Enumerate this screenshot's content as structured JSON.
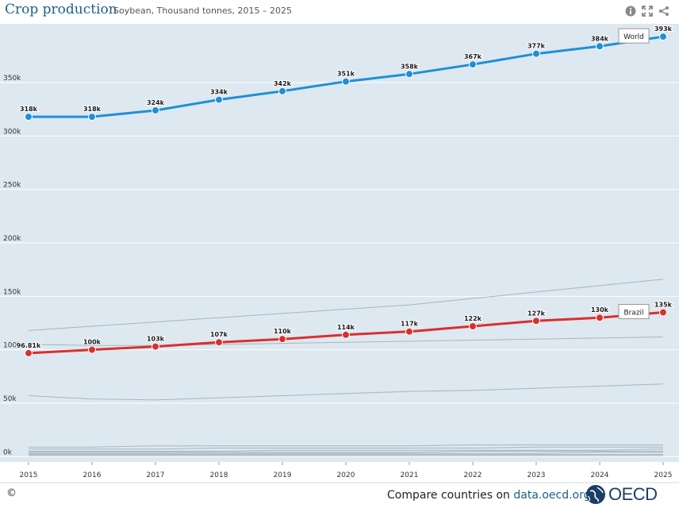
{
  "header": {
    "title": "Crop production",
    "subtitle": "Soybean, Thousand tonnes, 2015 – 2025"
  },
  "icons": [
    "info-icon",
    "fullscreen-icon",
    "share-icon"
  ],
  "footer": {
    "copyright": "©",
    "compare_text": "Compare countries on ",
    "compare_domain": "data.oecd.org",
    "logo_text": "OECD"
  },
  "colors": {
    "plot_bg": "#dde8f0",
    "world": "#1f8fd6",
    "brazil": "#d9302f",
    "gray_line": "#a7b5c0",
    "title": "#1a5f8a"
  },
  "chart_data": {
    "type": "line",
    "x": [
      2015,
      2016,
      2017,
      2018,
      2019,
      2020,
      2021,
      2022,
      2023,
      2024,
      2025
    ],
    "xlabels": [
      "2015",
      "2016",
      "2017",
      "2018",
      "2019",
      "2020",
      "2021",
      "2022",
      "2023",
      "2024",
      "2025"
    ],
    "yticks": [
      0,
      50,
      100,
      150,
      200,
      250,
      300,
      350
    ],
    "ytick_labels": [
      "0k",
      "50k",
      "100k",
      "150k",
      "200k",
      "250k",
      "300k",
      "350k"
    ],
    "ylim": [
      -5,
      405
    ],
    "grid": true,
    "series": [
      {
        "name": "World",
        "highlight": true,
        "color": "#1f8fd6",
        "values": [
          318,
          318,
          324,
          334,
          342,
          351,
          358,
          367,
          377,
          384,
          393
        ],
        "labels": [
          "318k",
          "318k",
          "324k",
          "334k",
          "342k",
          "351k",
          "358k",
          "367k",
          "377k",
          "384k",
          "393k"
        ]
      },
      {
        "name": "Brazil",
        "highlight": true,
        "color": "#d9302f",
        "values": [
          96.81,
          100,
          103,
          107,
          110,
          114,
          117,
          122,
          127,
          130,
          135
        ],
        "labels": [
          "96.81k",
          "100k",
          "103k",
          "107k",
          "110k",
          "114k",
          "117k",
          "122k",
          "127k",
          "130k",
          "135k"
        ]
      }
    ],
    "background_series": [
      [
        118,
        122,
        126,
        130,
        134,
        138,
        142,
        148,
        154,
        160,
        166
      ],
      [
        105,
        104,
        104,
        105,
        106,
        107,
        108,
        109,
        110,
        111,
        112
      ],
      [
        57,
        54,
        53,
        55,
        57,
        59,
        61,
        62,
        64,
        66,
        68
      ],
      [
        9,
        9,
        10,
        10,
        10,
        10,
        10,
        11,
        11,
        11,
        11
      ],
      [
        7,
        7,
        7,
        8,
        8,
        8,
        8,
        8,
        9,
        9,
        9
      ],
      [
        5,
        5,
        5,
        5,
        6,
        6,
        6,
        6,
        6,
        6,
        7
      ],
      [
        4,
        4,
        4,
        4,
        4,
        4,
        4,
        5,
        5,
        5,
        5
      ],
      [
        3,
        3,
        3,
        3,
        3,
        3,
        3,
        3,
        3,
        4,
        4
      ],
      [
        2,
        2,
        2,
        2,
        2,
        2,
        2,
        2,
        2,
        2,
        2
      ],
      [
        1,
        1,
        1,
        1,
        1,
        1,
        1,
        1,
        1,
        1,
        1
      ]
    ]
  }
}
